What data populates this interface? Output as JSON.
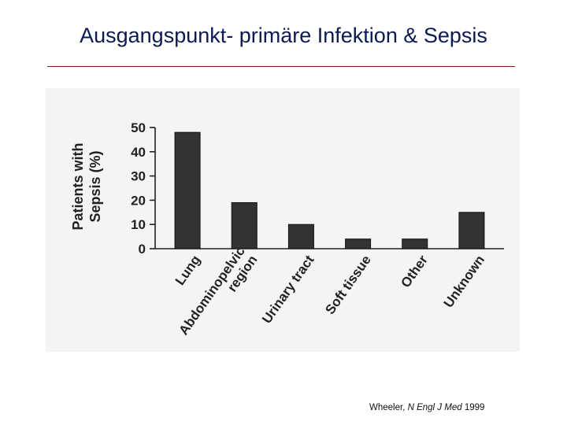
{
  "slide": {
    "title": "Ausgangspunkt- primäre Infektion & Sepsis"
  },
  "citation": {
    "author": "Wheeler,",
    "journal": "N Engl J Med",
    "year": "1999"
  },
  "chart_data": {
    "type": "bar",
    "title": "",
    "ylabel_line1": "Patients with",
    "ylabel_line2": "Sepsis (%)",
    "xlabel": "",
    "ylim": [
      0,
      50
    ],
    "yticks": [
      0,
      10,
      20,
      30,
      40,
      50
    ],
    "categories": [
      [
        "Lung"
      ],
      [
        "Abdominopelvic",
        "region"
      ],
      [
        "Urinary tract"
      ],
      [
        "Soft tissue"
      ],
      [
        "Other"
      ],
      [
        "Unknown"
      ]
    ],
    "values": [
      48,
      19,
      10,
      4,
      4,
      15
    ],
    "grid": false,
    "legend": "none",
    "bar_color": "#333333"
  }
}
